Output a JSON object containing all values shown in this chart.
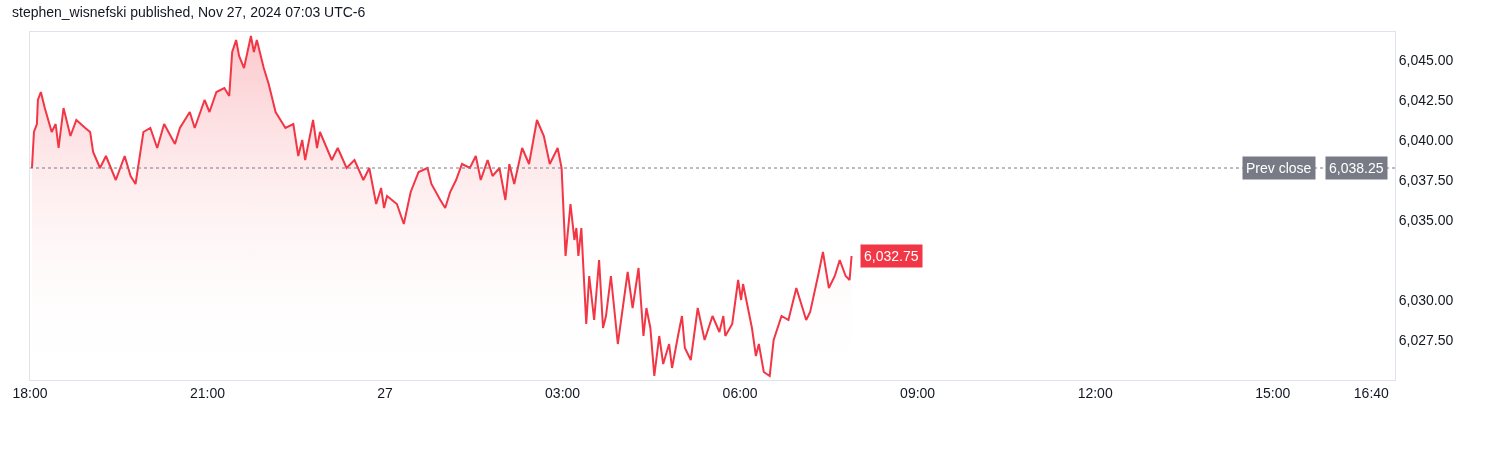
{
  "chart_data": {
    "type": "area",
    "title": "stephen_wisnefski published, Nov 27, 2024 07:03 UTC-6",
    "x": [
      "2024-11-26T18:02",
      "2024-11-26T18:04",
      "2024-11-26T18:07",
      "2024-11-26T18:08",
      "2024-11-26T18:11",
      "2024-11-26T18:15",
      "2024-11-26T18:22",
      "2024-11-26T18:26",
      "2024-11-26T18:29",
      "2024-11-26T18:34",
      "2024-11-26T18:41",
      "2024-11-26T18:47",
      "2024-11-26T18:56",
      "2024-11-26T19:01",
      "2024-11-26T19:04",
      "2024-11-26T19:11",
      "2024-11-26T19:17",
      "2024-11-26T19:27",
      "2024-11-26T19:36",
      "2024-11-26T19:42",
      "2024-11-26T19:47",
      "2024-11-26T19:55",
      "2024-11-26T20:02",
      "2024-11-26T20:09",
      "2024-11-26T20:16",
      "2024-11-26T20:27",
      "2024-11-26T20:32",
      "2024-11-26T20:42",
      "2024-11-26T20:47",
      "2024-11-26T20:57",
      "2024-11-26T21:02",
      "2024-11-26T21:09",
      "2024-11-26T21:17",
      "2024-11-26T21:22",
      "2024-11-26T21:25",
      "2024-11-26T21:29",
      "2024-11-26T21:32",
      "2024-11-26T21:37",
      "2024-11-26T21:44",
      "2024-11-26T21:47",
      "2024-11-26T21:50",
      "2024-11-26T21:57",
      "2024-11-26T22:02",
      "2024-11-26T22:09",
      "2024-11-26T22:19",
      "2024-11-26T22:27",
      "2024-11-26T22:32",
      "2024-11-26T22:36",
      "2024-11-26T22:39",
      "2024-11-26T22:47",
      "2024-11-26T22:51",
      "2024-11-26T22:54",
      "2024-11-26T23:06",
      "2024-11-26T23:12",
      "2024-11-26T23:21",
      "2024-11-26T23:29",
      "2024-11-26T23:38",
      "2024-11-26T23:44",
      "2024-11-26T23:51",
      "2024-11-26T23:56",
      "2024-11-26T23:59",
      "2024-11-27T00:02",
      "2024-11-27T00:12",
      "2024-11-27T00:19",
      "2024-11-27T00:26",
      "2024-11-27T00:34",
      "2024-11-27T00:43",
      "2024-11-27T00:47",
      "2024-11-27T00:56",
      "2024-11-27T01:01",
      "2024-11-27T01:06",
      "2024-11-27T01:12",
      "2024-11-27T01:18",
      "2024-11-27T01:26",
      "2024-11-27T01:32",
      "2024-11-27T01:37",
      "2024-11-27T01:44",
      "2024-11-27T01:49",
      "2024-11-27T01:56",
      "2024-11-27T02:02",
      "2024-11-27T02:06",
      "2024-11-27T02:11",
      "2024-11-27T02:19",
      "2024-11-27T02:26",
      "2024-11-27T02:34",
      "2024-11-27T02:41",
      "2024-11-27T02:47",
      "2024-11-27T02:55",
      "2024-11-27T02:59",
      "2024-11-27T03:03",
      "2024-11-27T03:08",
      "2024-11-27T03:12",
      "2024-11-27T03:14",
      "2024-11-27T03:16",
      "2024-11-27T03:19",
      "2024-11-27T03:24",
      "2024-11-27T03:27",
      "2024-11-27T03:32",
      "2024-11-27T03:37",
      "2024-11-27T03:41",
      "2024-11-27T03:44",
      "2024-11-27T03:49",
      "2024-11-27T03:56",
      "2024-11-27T04:06",
      "2024-11-27T04:11",
      "2024-11-27T04:17",
      "2024-11-27T04:22",
      "2024-11-27T04:25",
      "2024-11-27T04:29",
      "2024-11-27T04:33",
      "2024-11-27T04:38",
      "2024-11-27T04:42",
      "2024-11-27T04:48",
      "2024-11-27T04:51",
      "2024-11-27T04:57",
      "2024-11-27T05:01",
      "2024-11-27T05:04",
      "2024-11-27T05:10",
      "2024-11-27T05:17",
      "2024-11-27T05:24",
      "2024-11-27T05:32",
      "2024-11-27T05:39",
      "2024-11-27T05:43",
      "2024-11-27T05:45",
      "2024-11-27T05:52",
      "2024-11-27T05:58",
      "2024-11-27T06:01",
      "2024-11-27T06:03",
      "2024-11-27T06:12",
      "2024-11-27T06:16",
      "2024-11-27T06:19",
      "2024-11-27T06:24",
      "2024-11-27T06:30",
      "2024-11-27T06:34",
      "2024-11-27T06:42",
      "2024-11-27T06:49",
      "2024-11-27T06:57",
      "2024-11-27T07:07",
      "2024-11-27T07:11",
      "2024-11-27T07:19",
      "2024-11-27T07:24",
      "2024-11-27T07:30",
      "2024-11-27T07:36",
      "2024-11-27T07:41",
      "2024-11-27T07:47",
      "2024-11-27T07:51",
      "2024-11-27T07:53"
    ],
    "series": [
      {
        "color": "#f23645",
        "values": [
          6038.25,
          6040.5,
          6041.0,
          6042.5,
          6043.0,
          6042.0,
          6040.5,
          6041.0,
          6039.5,
          6042.0,
          6040.25,
          6041.25,
          6040.75,
          6040.5,
          6039.25,
          6038.25,
          6039.0,
          6037.5,
          6039.0,
          6037.75,
          6037.25,
          6040.5,
          6040.75,
          6039.5,
          6041.0,
          6039.75,
          6040.75,
          6041.75,
          6040.75,
          6042.5,
          6041.75,
          6043.0,
          6043.25,
          6042.75,
          6045.5,
          6046.25,
          6045.25,
          6044.5,
          6046.5,
          6045.5,
          6046.25,
          6044.5,
          6043.5,
          6041.75,
          6040.75,
          6041.0,
          6039.0,
          6040.0,
          6038.75,
          6041.25,
          6039.5,
          6040.5,
          6038.75,
          6039.5,
          6038.25,
          6038.75,
          6037.5,
          6038.25,
          6036.0,
          6037.0,
          6035.75,
          6036.5,
          6036.0,
          6034.75,
          6036.75,
          6038.0,
          6038.25,
          6037.25,
          6036.25,
          6035.75,
          6036.75,
          6037.5,
          6038.5,
          6038.25,
          6039.0,
          6037.5,
          6038.75,
          6037.75,
          6038.25,
          6036.25,
          6038.5,
          6037.25,
          6039.5,
          6038.5,
          6041.25,
          6040.25,
          6038.5,
          6039.5,
          6038.25,
          6032.75,
          6036.0,
          6033.75,
          6034.5,
          6032.75,
          6034.5,
          6028.5,
          6031.5,
          6028.75,
          6032.5,
          6028.25,
          6029.0,
          6031.5,
          6027.25,
          6031.75,
          6029.5,
          6032.0,
          6027.75,
          6029.5,
          6028.25,
          6025.25,
          6027.75,
          6026.0,
          6027.25,
          6025.75,
          6027.75,
          6029.0,
          6027.0,
          6026.25,
          6029.5,
          6027.5,
          6029.0,
          6028.0,
          6029.0,
          6027.75,
          6028.5,
          6031.25,
          6030.0,
          6031.0,
          6028.25,
          6026.5,
          6027.25,
          6025.5,
          6025.25,
          6027.5,
          6029.0,
          6028.75,
          6030.75,
          6028.75,
          6029.25,
          6031.5,
          6033.0,
          6030.75,
          6031.5,
          6032.5,
          6031.5,
          6031.25,
          6032.75
        ]
      }
    ],
    "xlim": [
      "2024-11-26T18:00",
      "2024-11-27T17:04"
    ],
    "xticks": [
      {
        "value": "2024-11-26T18:00",
        "label": "18:00"
      },
      {
        "value": "2024-11-26T21:00",
        "label": "21:00"
      },
      {
        "value": "2024-11-27T00:00",
        "label": "27"
      },
      {
        "value": "2024-11-27T03:00",
        "label": "03:00"
      },
      {
        "value": "2024-11-27T06:00",
        "label": "06:00"
      },
      {
        "value": "2024-11-27T09:00",
        "label": "09:00"
      },
      {
        "value": "2024-11-27T12:00",
        "label": "12:00"
      },
      {
        "value": "2024-11-27T15:00",
        "label": "15:00"
      },
      {
        "value": "2024-11-27T16:40",
        "label": "16:40"
      }
    ],
    "ylim": [
      6025,
      6046.75
    ],
    "yticks": [
      {
        "value": 6027.5,
        "label": "6,027.50"
      },
      {
        "value": 6030,
        "label": "6,030.00"
      },
      {
        "value": 6035,
        "label": "6,035.00"
      },
      {
        "value": 6037.5,
        "label": "6,037.50"
      },
      {
        "value": 6040,
        "label": "6,040.00"
      },
      {
        "value": 6042.5,
        "label": "6,042.50"
      },
      {
        "value": 6045,
        "label": "6,045.00"
      }
    ],
    "ref_lines": [
      {
        "axis": "y",
        "value": 6038.25,
        "label": "Prev close",
        "color": "#787b86",
        "line_style": "dotted"
      }
    ],
    "annotations": [
      {
        "text": "6,032.75",
        "x": "2024-11-27T07:53",
        "y": 6032.75
      },
      {
        "text": "6,038.25",
        "y": 6038.25
      }
    ],
    "grid": false
  }
}
